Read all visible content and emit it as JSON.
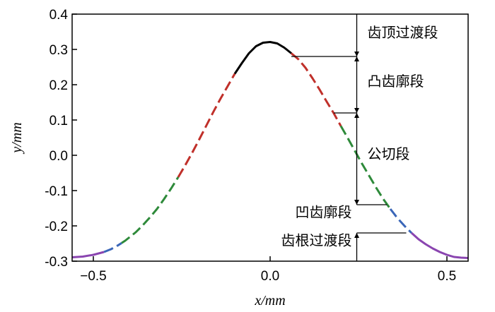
{
  "chart_data": {
    "type": "line",
    "xlabel": "x/mm",
    "ylabel": "y/mm",
    "xlim": [
      -0.56,
      0.56
    ],
    "ylim": [
      -0.3,
      0.4
    ],
    "xticks": [
      {
        "value": -0.5,
        "label": "−0.5"
      },
      {
        "value": 0.0,
        "label": "0.0"
      },
      {
        "value": 0.5,
        "label": "0.5"
      }
    ],
    "yticks": [
      {
        "value": 0.4,
        "label": "0.4"
      },
      {
        "value": 0.3,
        "label": "0.3"
      },
      {
        "value": 0.2,
        "label": "0.2"
      },
      {
        "value": 0.1,
        "label": "0.1"
      },
      {
        "value": 0.0,
        "label": "0.0"
      },
      {
        "value": -0.1,
        "label": "-0.1"
      },
      {
        "value": -0.2,
        "label": "-0.2"
      },
      {
        "value": -0.3,
        "label": "-0.3"
      }
    ],
    "curve": {
      "color": "#000000",
      "points": [
        [
          -0.56,
          -0.289
        ],
        [
          -0.53,
          -0.287
        ],
        [
          -0.5,
          -0.282
        ],
        [
          -0.47,
          -0.274
        ],
        [
          -0.45,
          -0.266
        ],
        [
          -0.43,
          -0.255
        ],
        [
          -0.41,
          -0.242
        ],
        [
          -0.38,
          -0.218
        ],
        [
          -0.36,
          -0.198
        ],
        [
          -0.34,
          -0.176
        ],
        [
          -0.32,
          -0.152
        ],
        [
          -0.3,
          -0.124
        ],
        [
          -0.28,
          -0.094
        ],
        [
          -0.26,
          -0.062
        ],
        [
          -0.24,
          -0.028
        ],
        [
          -0.22,
          0.008
        ],
        [
          -0.2,
          0.046
        ],
        [
          -0.18,
          0.085
        ],
        [
          -0.16,
          0.124
        ],
        [
          -0.14,
          0.161
        ],
        [
          -0.12,
          0.196
        ],
        [
          -0.1,
          0.231
        ],
        [
          -0.08,
          0.261
        ],
        [
          -0.06,
          0.289
        ],
        [
          -0.04,
          0.309
        ],
        [
          -0.02,
          0.319
        ],
        [
          0.0,
          0.321
        ],
        [
          0.02,
          0.317
        ],
        [
          0.04,
          0.305
        ],
        [
          0.06,
          0.289
        ],
        [
          0.08,
          0.272
        ],
        [
          0.1,
          0.248
        ],
        [
          0.12,
          0.218
        ],
        [
          0.14,
          0.186
        ],
        [
          0.16,
          0.152
        ],
        [
          0.18,
          0.119
        ],
        [
          0.2,
          0.083
        ],
        [
          0.22,
          0.048
        ],
        [
          0.24,
          0.012
        ],
        [
          0.26,
          -0.024
        ],
        [
          0.28,
          -0.058
        ],
        [
          0.3,
          -0.092
        ],
        [
          0.32,
          -0.124
        ],
        [
          0.34,
          -0.152
        ],
        [
          0.36,
          -0.178
        ],
        [
          0.38,
          -0.2
        ],
        [
          0.4,
          -0.22
        ],
        [
          0.42,
          -0.238
        ],
        [
          0.44,
          -0.252
        ],
        [
          0.46,
          -0.264
        ],
        [
          0.48,
          -0.274
        ],
        [
          0.5,
          -0.282
        ],
        [
          0.52,
          -0.288
        ],
        [
          0.54,
          -0.29
        ],
        [
          0.56,
          -0.291
        ]
      ]
    },
    "segments": [
      {
        "label": "齿顶过渡段",
        "color": "#000000",
        "style": "solid",
        "x_ranges": [
          [
            -0.1,
            0.06
          ]
        ]
      },
      {
        "label": "凸齿廓段",
        "color": "#c0302a",
        "style": "dashed",
        "x_ranges": [
          [
            -0.26,
            -0.1
          ],
          [
            0.06,
            0.2
          ]
        ]
      },
      {
        "label": "公切段",
        "color": "#2e8a3a",
        "style": "dashed",
        "x_ranges": [
          [
            -0.42,
            -0.26
          ],
          [
            0.2,
            0.34
          ]
        ]
      },
      {
        "label": "凹齿廓段",
        "color": "#3a66b8",
        "style": "dashed",
        "x_ranges": [
          [
            -0.47,
            -0.42
          ],
          [
            0.34,
            0.4
          ]
        ]
      },
      {
        "label": "齿根过渡段",
        "color": "#8a45b0",
        "style": "solid",
        "x_ranges": [
          [
            -0.56,
            -0.47
          ],
          [
            0.4,
            0.56
          ]
        ]
      }
    ],
    "annotation": {
      "x": 0.245,
      "boundaries": [
        {
          "from_x": 0.06,
          "y": 0.28
        },
        {
          "from_x": 0.18,
          "y": 0.12
        },
        {
          "from_x": 0.33,
          "y": -0.14
        },
        {
          "from_x": 0.385,
          "y": -0.22
        }
      ]
    },
    "grid": false,
    "legend": "none"
  }
}
